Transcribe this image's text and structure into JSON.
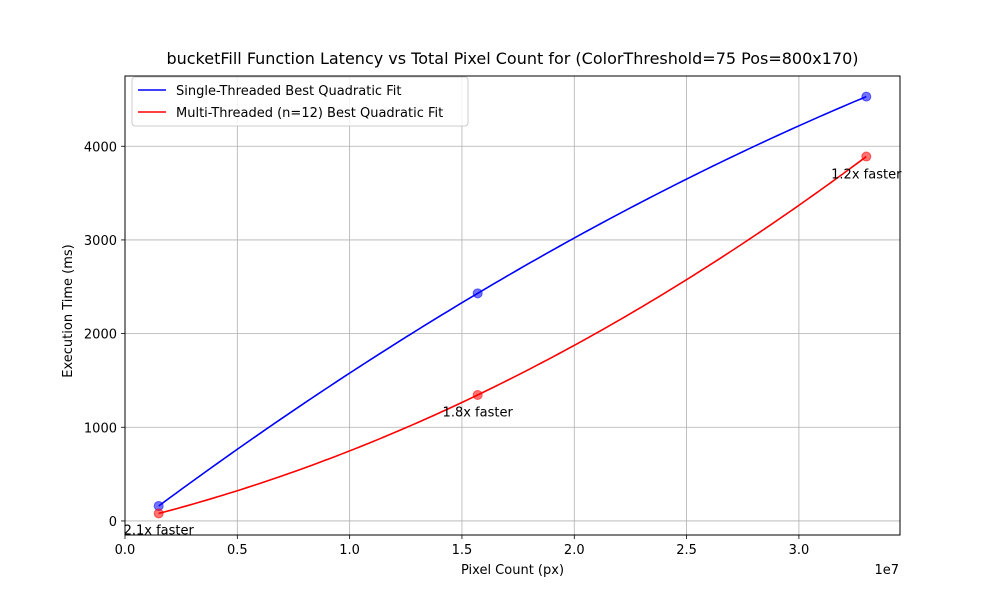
{
  "chart_data": {
    "type": "line",
    "title": "bucketFill Function Latency vs Total Pixel Count for (ColorThreshold=75 Pos=800x170)",
    "xlabel": "Pixel Count (px)",
    "ylabel": "Execution Time (ms)",
    "x_offset_label": "1e7",
    "xlim": [
      0,
      34500000
    ],
    "ylim": [
      -150,
      4750
    ],
    "x_ticks": [
      0,
      5000000,
      10000000,
      15000000,
      20000000,
      25000000,
      30000000
    ],
    "x_tick_labels": [
      "0.0",
      "0.5",
      "1.0",
      "1.5",
      "2.0",
      "2.5",
      "3.0"
    ],
    "y_ticks": [
      0,
      1000,
      2000,
      3000,
      4000
    ],
    "y_tick_labels": [
      "0",
      "1000",
      "2000",
      "3000",
      "4000"
    ],
    "grid": true,
    "legend_position": "top-left",
    "x_points": [
      1500000,
      15700000,
      33000000
    ],
    "series": [
      {
        "name": "Single-Threaded Best Quadratic Fit",
        "color": "#0000ff",
        "values": [
          160,
          2430,
          4530
        ]
      },
      {
        "name": "Multi-Threaded (n=12) Best Quadratic Fit",
        "color": "#ff0000",
        "values": [
          80,
          1345,
          3890
        ]
      }
    ],
    "annotations": [
      {
        "text": "2.1x faster",
        "x": 1500000,
        "y": -90
      },
      {
        "text": "1.8x faster",
        "x": 15700000,
        "y": 1170
      },
      {
        "text": "1.2x faster",
        "x": 33000000,
        "y": 3710
      }
    ]
  }
}
